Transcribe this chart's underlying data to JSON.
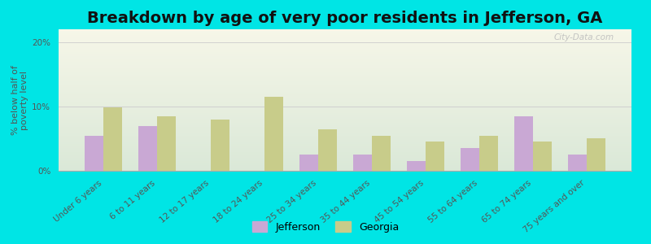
{
  "title": "Breakdown by age of very poor residents in Jefferson, GA",
  "ylabel": "% below half of\npoverty level",
  "categories": [
    "Under 6 years",
    "6 to 11 years",
    "12 to 17 years",
    "18 to 24 years",
    "25 to 34 years",
    "35 to 44 years",
    "45 to 54 years",
    "55 to 64 years",
    "65 to 74 years",
    "75 years and over"
  ],
  "jefferson": [
    5.5,
    7.0,
    0.0,
    0.0,
    2.5,
    2.5,
    1.5,
    3.5,
    8.5,
    2.5
  ],
  "georgia": [
    9.8,
    8.5,
    8.0,
    11.5,
    6.5,
    5.5,
    4.5,
    5.5,
    4.5,
    5.0
  ],
  "jefferson_color": "#c9a8d4",
  "georgia_color": "#c8cc8a",
  "background_color": "#00e5e5",
  "ylim": [
    0,
    22
  ],
  "yticks": [
    0,
    10,
    20
  ],
  "ytick_labels": [
    "0%",
    "10%",
    "20%"
  ],
  "title_fontsize": 14,
  "axis_label_fontsize": 8,
  "tick_fontsize": 7.5,
  "legend_labels": [
    "Jefferson",
    "Georgia"
  ],
  "bar_width": 0.35,
  "watermark": "City-Data.com"
}
